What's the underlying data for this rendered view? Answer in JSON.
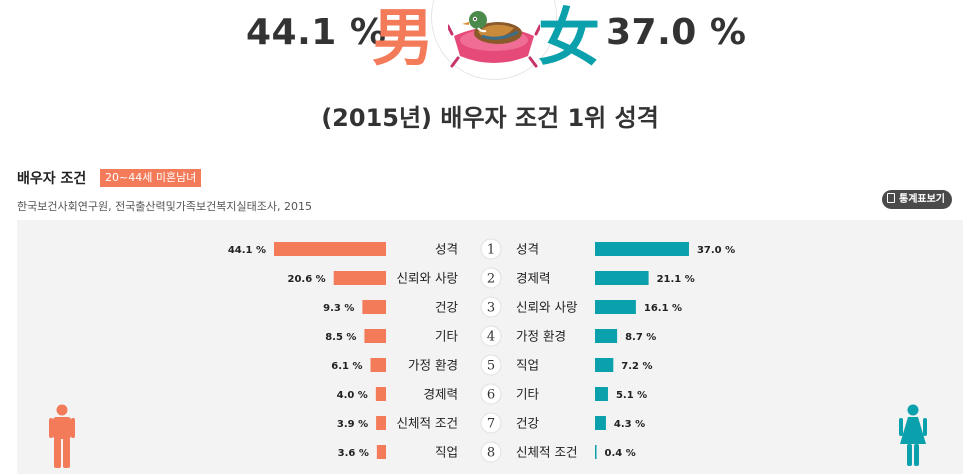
{
  "hero": {
    "male_pct": "44.1 %",
    "male_symbol": "男",
    "female_symbol": "女",
    "female_pct": "37.0 %",
    "illustration": "mandarin-duck-icon"
  },
  "title": "(2015년) 배우자 조건 1위 성격",
  "section": {
    "title": "배우자 조건",
    "badge": "20~44세 미혼남녀",
    "source": "한국보건사회연구원, 전국출산력및가족보건복지실태조사, 2015",
    "stats_button": "통계표보기"
  },
  "colors": {
    "male": "#f47b5a",
    "female": "#0aa0ac",
    "panel": "#f3f3f3"
  },
  "chart_data": {
    "type": "bar",
    "ranks": [
      1,
      2,
      3,
      4,
      5,
      6,
      7,
      8
    ],
    "series": [
      {
        "side": "male",
        "categories": [
          "성격",
          "신뢰와 사랑",
          "건강",
          "기타",
          "가정 환경",
          "경제력",
          "신체적 조건",
          "직업"
        ],
        "values": [
          44.1,
          20.6,
          9.3,
          8.5,
          6.1,
          4.0,
          3.9,
          3.6
        ],
        "labels": [
          "44.1 %",
          "20.6 %",
          "9.3 %",
          "8.5 %",
          "6.1 %",
          "4.0 %",
          "3.9 %",
          "3.6 %"
        ]
      },
      {
        "side": "female",
        "categories": [
          "성격",
          "경제력",
          "신뢰와 사랑",
          "가정 환경",
          "직업",
          "기타",
          "건강",
          "신체적 조건"
        ],
        "values": [
          37.0,
          21.1,
          16.1,
          8.7,
          7.2,
          5.1,
          4.3,
          0.4
        ],
        "labels": [
          "37.0 %",
          "21.1 %",
          "16.1 %",
          "8.7 %",
          "7.2 %",
          "5.1 %",
          "4.3 %",
          "0.4 %"
        ]
      }
    ]
  }
}
